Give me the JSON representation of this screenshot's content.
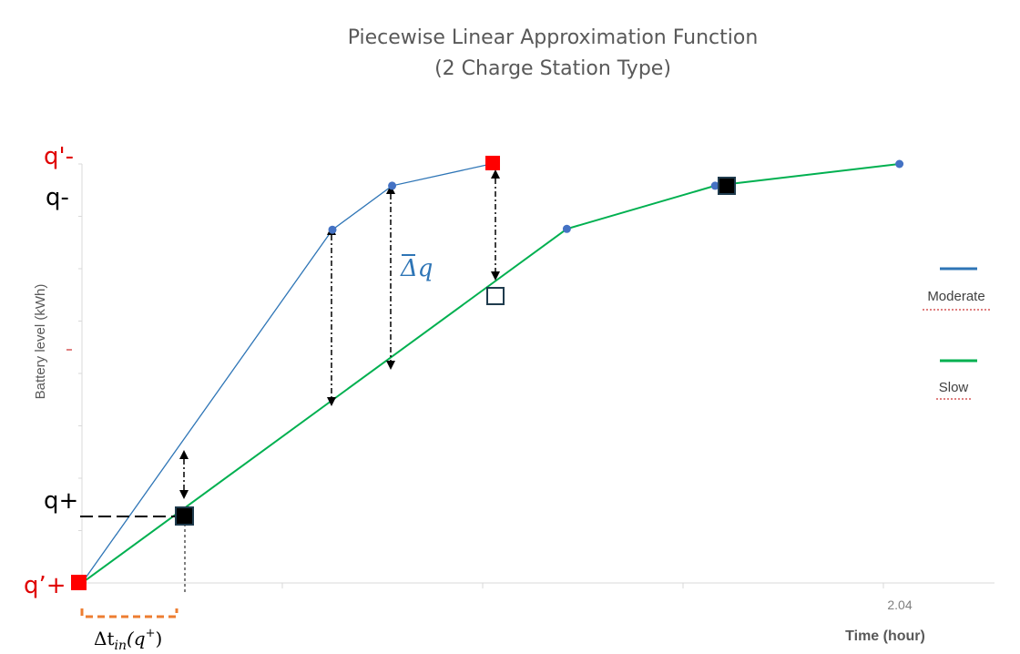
{
  "chart_data": {
    "type": "line",
    "title": [
      "Piecewise Linear Approximation Function",
      "(2 Charge Station Type)"
    ],
    "xlabel": "Time (hour)",
    "ylabel": "Battery level (kWh)",
    "x_tick_labels": [
      "2.04"
    ],
    "series": [
      {
        "name": "Moderate",
        "color": "#2e75b6",
        "points": [
          [
            0,
            0
          ],
          [
            0.625,
            0.843
          ],
          [
            0.774,
            0.948
          ],
          [
            1.021,
            1.0
          ]
        ]
      },
      {
        "name": "Slow",
        "color": "#00b050",
        "points": [
          [
            0,
            0
          ],
          [
            1.21,
            0.845
          ],
          [
            1.58,
            0.948
          ],
          [
            2.04,
            1.0
          ]
        ]
      }
    ],
    "annotations": {
      "q_minus_prime": "q'-",
      "q_minus": "q-",
      "q_plus": "q+",
      "q_plus_prime": "q’+",
      "delta_q": "Δq",
      "delta_t": "Δt",
      "delta_t_sub": "in",
      "delta_t_arg": "(q",
      "delta_t_sup": "+",
      "delta_t_close": ")"
    },
    "colors": {
      "red_marker": "#ff0000",
      "red_label": "#e00000",
      "bracket": "#ed7d31",
      "delta_q": "#2e75b6"
    },
    "grid": false,
    "legend_position": "right"
  }
}
